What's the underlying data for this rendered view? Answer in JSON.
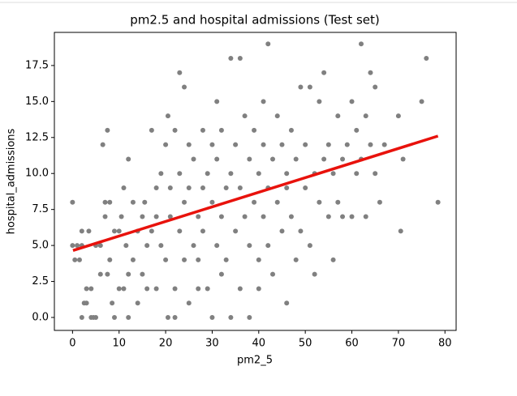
{
  "chart_data": {
    "type": "scatter",
    "title": "pm2.5 and hospital admissions (Test set)",
    "xlabel": "pm2_5",
    "ylabel": "hospital_admissions",
    "xlim": [
      -3.9,
      82.4
    ],
    "ylim": [
      -0.9,
      19.8
    ],
    "xticks": [
      0,
      10,
      20,
      30,
      40,
      50,
      60,
      70,
      80
    ],
    "yticks": [
      {
        "value": 0,
        "label": "0.0"
      },
      2.5,
      {
        "value": 5,
        "label": "5.0"
      },
      7.5,
      {
        "value": 10,
        "label": "10.0"
      },
      12.5,
      {
        "value": 15,
        "label": "15.0"
      },
      17.5
    ],
    "series": [
      {
        "type": "scatter",
        "color": "#808080",
        "x": [
          0,
          0,
          0.5,
          1,
          1.5,
          2,
          2,
          2.5,
          3,
          3,
          2,
          3.5,
          4,
          4,
          4.5,
          5,
          5,
          6,
          6,
          6.5,
          7,
          7,
          7.5,
          7.5,
          8,
          8,
          8.5,
          9,
          9,
          10,
          10,
          10.5,
          11,
          11,
          11.5,
          12,
          12,
          12,
          13,
          13,
          14,
          14,
          15,
          15,
          15.5,
          16,
          16,
          17,
          17,
          18,
          18,
          18,
          19,
          19,
          20,
          20,
          20.5,
          20.5,
          21,
          21,
          22,
          22,
          22,
          23,
          23,
          23,
          24,
          24,
          24,
          25,
          25,
          25,
          26,
          26,
          27,
          27,
          27,
          28,
          28,
          28,
          29,
          29,
          30,
          30,
          30,
          31,
          31,
          31,
          32,
          32,
          32,
          33,
          33,
          34,
          34,
          34,
          35,
          35,
          36,
          36,
          36,
          37,
          37,
          38,
          38,
          38,
          39,
          39,
          40,
          40,
          40,
          41,
          41,
          41,
          42,
          42,
          42,
          43,
          43,
          44,
          44,
          45,
          45,
          46,
          46,
          46,
          47,
          47,
          48,
          48,
          49,
          49,
          50,
          50,
          51,
          51,
          52,
          52,
          53,
          53,
          54,
          54,
          55,
          55,
          56,
          56,
          57,
          57,
          58,
          58,
          59,
          60,
          60,
          61,
          61,
          62,
          62,
          63,
          63,
          64,
          64,
          65,
          65,
          66,
          67,
          70,
          70.5,
          71,
          75,
          76,
          78.5
        ],
        "values": [
          8,
          5,
          4,
          5,
          4,
          5,
          6,
          1,
          2,
          1,
          0,
          6,
          2,
          0,
          0,
          5,
          0,
          3,
          5,
          12,
          7,
          8,
          13,
          3,
          8,
          4,
          1,
          6,
          0,
          2,
          6,
          7,
          9,
          2,
          5,
          3,
          11,
          0,
          4,
          8,
          1,
          6,
          7,
          3,
          8,
          5,
          2,
          13,
          6,
          7,
          2,
          9,
          5,
          10,
          4,
          12,
          0,
          14,
          7,
          9,
          13,
          2,
          0,
          17,
          6,
          10,
          16,
          8,
          4,
          9,
          1,
          12,
          11,
          5,
          4,
          7,
          2,
          13,
          9,
          6,
          10,
          2,
          12,
          0,
          8,
          15,
          11,
          5,
          3,
          7,
          13,
          9,
          4,
          18,
          10,
          0,
          6,
          12,
          18,
          9,
          2,
          14,
          7,
          11,
          0,
          5,
          13,
          8,
          2,
          10,
          4,
          15,
          12,
          7,
          19,
          9,
          5,
          11,
          3,
          14,
          8,
          6,
          12,
          10,
          1,
          9,
          13,
          7,
          11,
          4,
          16,
          6,
          12,
          9,
          16,
          5,
          10,
          3,
          15,
          8,
          17,
          11,
          7,
          12,
          4,
          10,
          14,
          8,
          11,
          7,
          12,
          15,
          7,
          10,
          13,
          19,
          11,
          14,
          7,
          17,
          12,
          16,
          10,
          8,
          12,
          14,
          6,
          11,
          15,
          18,
          8
        ]
      },
      {
        "type": "line",
        "color": "#e8120c",
        "x": [
          0.1,
          78.5
        ],
        "values": [
          4.65,
          12.6
        ]
      }
    ]
  }
}
